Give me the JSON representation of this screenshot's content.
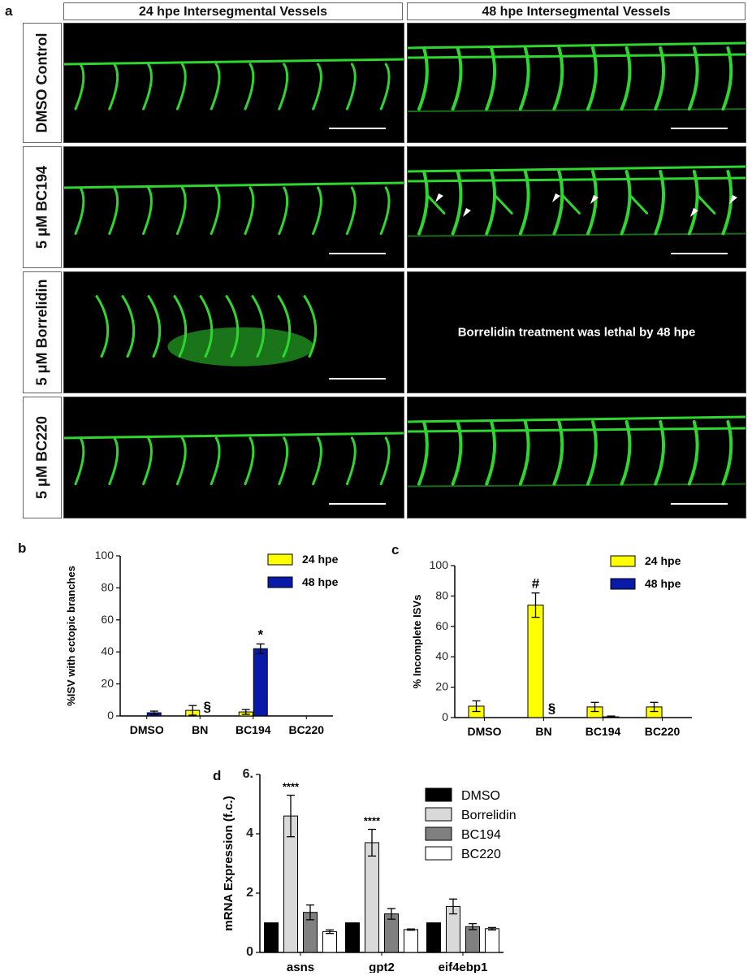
{
  "panel_a": {
    "letter": "a",
    "headers": [
      "24 hpe Intersegmental Vessels",
      "48 hpe Intersegmental Vessels"
    ],
    "rows": [
      "DMSO Control",
      "5 μM BC194",
      "5 μM Borrelidin",
      "5 μM BC220"
    ],
    "lethal_note": "Borrelidin treatment was lethal by 48 hpe",
    "vessel_color": "#2fd62f"
  },
  "chart_data": [
    {
      "panel": "b",
      "type": "bar",
      "categories": [
        "DMSO",
        "BN",
        "BC194",
        "BC220"
      ],
      "series": [
        {
          "name": "24 hpe",
          "color": "#ffff00",
          "values": [
            0,
            3.5,
            2.5,
            0
          ],
          "errors": [
            0,
            3,
            1.5,
            0
          ]
        },
        {
          "name": "48 hpe",
          "color": "#0a1aa8",
          "values": [
            2,
            0,
            42,
            0
          ],
          "errors": [
            1,
            0,
            3,
            0
          ]
        }
      ],
      "ylabel": "%ISV with ectopic branches",
      "ylim": [
        0,
        100
      ],
      "yticks": [
        0,
        20,
        40,
        60,
        80,
        100
      ],
      "annotations": [
        {
          "text": "§",
          "category": "BN"
        },
        {
          "text": "*",
          "category": "BC194"
        }
      ],
      "legend": "top-right"
    },
    {
      "panel": "c",
      "type": "bar",
      "categories": [
        "DMSO",
        "BN",
        "BC194",
        "BC220"
      ],
      "series": [
        {
          "name": "24 hpe",
          "color": "#ffff00",
          "values": [
            7.5,
            74,
            7,
            7
          ],
          "errors": [
            3.5,
            8,
            3,
            3
          ]
        },
        {
          "name": "48 hpe",
          "color": "#0a1aa8",
          "values": [
            0,
            0,
            0.5,
            0
          ],
          "errors": [
            0,
            0,
            0.5,
            0
          ]
        }
      ],
      "ylabel": "% Incomplete ISVs",
      "ylim": [
        0,
        100
      ],
      "yticks": [
        0,
        20,
        40,
        60,
        80,
        100
      ],
      "annotations": [
        {
          "text": "#",
          "category": "BN"
        },
        {
          "text": "§",
          "category": "BN"
        }
      ],
      "legend": "top-right"
    },
    {
      "panel": "d",
      "type": "bar",
      "categories": [
        "asns",
        "gpt2",
        "eif4ebp1"
      ],
      "series": [
        {
          "name": "DMSO",
          "color": "#000000",
          "values": [
            1,
            1,
            1
          ],
          "errors": [
            0,
            0,
            0
          ]
        },
        {
          "name": "Borrelidin",
          "color": "#d9d9d9",
          "values": [
            4.6,
            3.7,
            1.55
          ],
          "errors": [
            0.7,
            0.45,
            0.25
          ]
        },
        {
          "name": "BC194",
          "color": "#808080",
          "values": [
            1.35,
            1.3,
            0.87
          ],
          "errors": [
            0.25,
            0.18,
            0.1
          ]
        },
        {
          "name": "BC220",
          "color": "#ffffff",
          "values": [
            0.7,
            0.77,
            0.8
          ],
          "errors": [
            0.06,
            0.02,
            0.04
          ]
        }
      ],
      "ylabel": "mRNA Expression (f.c.)",
      "ylim": [
        0,
        6
      ],
      "yticks": [
        "0",
        "2",
        "4",
        "6."
      ],
      "annotations": [
        {
          "text": "****",
          "category": "asns"
        },
        {
          "text": "****",
          "category": "gpt2"
        }
      ],
      "legend": "top-right"
    }
  ]
}
